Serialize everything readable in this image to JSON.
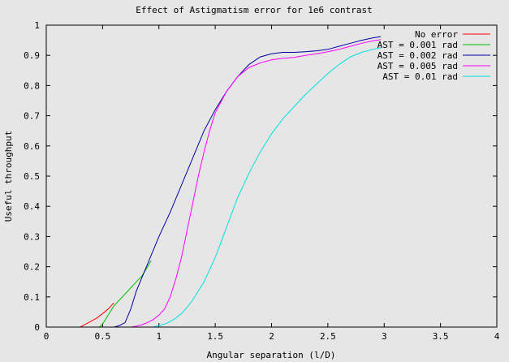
{
  "chart_data": {
    "type": "line",
    "title": "Effect of Astigmatism error for 1e6 contrast",
    "xlabel": "Angular separation (l/D)",
    "ylabel": "Useful throughput",
    "xlim": [
      0,
      4
    ],
    "ylim": [
      0,
      1
    ],
    "xticks": [
      0,
      0.5,
      1,
      1.5,
      2,
      2.5,
      3,
      3.5,
      4
    ],
    "xtick_labels": [
      "0",
      "0.5",
      "1",
      "1.5",
      "2",
      "2.5",
      "3",
      "3.5",
      "4"
    ],
    "yticks": [
      0,
      0.1,
      0.2,
      0.3,
      0.4,
      0.5,
      0.6,
      0.7,
      0.8,
      0.9,
      1
    ],
    "ytick_labels": [
      "0",
      "0.1",
      "0.2",
      "0.3",
      "0.4",
      "0.5",
      "0.6",
      "0.7",
      "0.8",
      "0.9",
      "1"
    ],
    "grid": false,
    "legend_position": "top-right",
    "series": [
      {
        "name": "No error",
        "color": "#ff0000",
        "x": [
          0.3,
          0.35,
          0.4,
          0.45,
          0.5,
          0.55,
          0.6
        ],
        "y": [
          0.0,
          0.01,
          0.02,
          0.03,
          0.045,
          0.06,
          0.08
        ]
      },
      {
        "name": "AST = 0.001 rad",
        "color": "#00c000",
        "x": [
          0.47,
          0.5,
          0.55,
          0.6,
          0.65,
          0.7,
          0.75,
          0.8,
          0.85,
          0.9,
          0.93
        ],
        "y": [
          0.0,
          0.01,
          0.04,
          0.07,
          0.09,
          0.11,
          0.13,
          0.15,
          0.17,
          0.2,
          0.22
        ]
      },
      {
        "name": "AST = 0.002 rad",
        "color": "#0000a0",
        "x": [
          0.6,
          0.65,
          0.7,
          0.75,
          0.8,
          0.9,
          1.0,
          1.1,
          1.2,
          1.3,
          1.4,
          1.5,
          1.6,
          1.7,
          1.8,
          1.9,
          2.0,
          2.1,
          2.2,
          2.3,
          2.4,
          2.5,
          2.6,
          2.7,
          2.8,
          2.9,
          2.97
        ],
        "y": [
          0.0,
          0.005,
          0.015,
          0.06,
          0.12,
          0.21,
          0.3,
          0.38,
          0.47,
          0.56,
          0.65,
          0.72,
          0.78,
          0.83,
          0.87,
          0.895,
          0.905,
          0.91,
          0.91,
          0.912,
          0.915,
          0.92,
          0.93,
          0.94,
          0.95,
          0.958,
          0.962
        ]
      },
      {
        "name": "AST = 0.005 rad",
        "color": "#ff00ff",
        "x": [
          0.75,
          0.8,
          0.85,
          0.9,
          0.95,
          1.0,
          1.05,
          1.1,
          1.15,
          1.2,
          1.25,
          1.3,
          1.35,
          1.4,
          1.45,
          1.5,
          1.6,
          1.7,
          1.8,
          1.9,
          2.0,
          2.1,
          2.2,
          2.3,
          2.4,
          2.5,
          2.6,
          2.7,
          2.8,
          2.9,
          2.97
        ],
        "y": [
          0.0,
          0.003,
          0.008,
          0.015,
          0.025,
          0.04,
          0.06,
          0.1,
          0.16,
          0.23,
          0.32,
          0.41,
          0.5,
          0.58,
          0.65,
          0.71,
          0.78,
          0.83,
          0.86,
          0.875,
          0.885,
          0.89,
          0.893,
          0.9,
          0.905,
          0.912,
          0.92,
          0.93,
          0.94,
          0.948,
          0.952
        ]
      },
      {
        "name": "AST = 0.01 rad",
        "color": "#00e0e0",
        "x": [
          0.95,
          1.0,
          1.05,
          1.1,
          1.15,
          1.2,
          1.25,
          1.3,
          1.35,
          1.4,
          1.45,
          1.5,
          1.55,
          1.6,
          1.65,
          1.7,
          1.8,
          1.9,
          2.0,
          2.1,
          2.2,
          2.3,
          2.4,
          2.5,
          2.6,
          2.7,
          2.8,
          2.9,
          2.97
        ],
        "y": [
          0.0,
          0.005,
          0.01,
          0.018,
          0.03,
          0.045,
          0.065,
          0.09,
          0.12,
          0.15,
          0.19,
          0.23,
          0.28,
          0.33,
          0.38,
          0.43,
          0.51,
          0.58,
          0.64,
          0.69,
          0.73,
          0.77,
          0.805,
          0.84,
          0.87,
          0.895,
          0.91,
          0.92,
          0.925
        ]
      }
    ]
  }
}
